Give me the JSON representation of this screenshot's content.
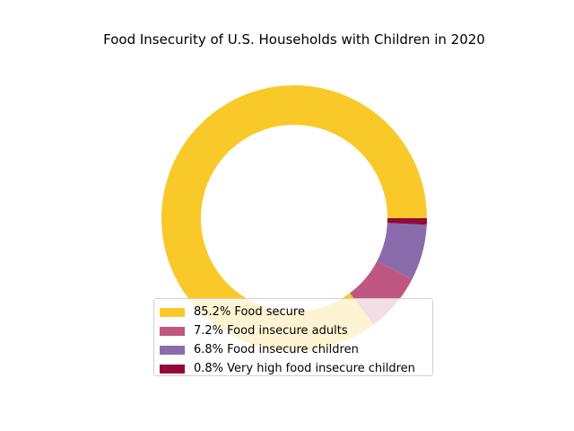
{
  "chart_data": {
    "type": "pie",
    "style": "donut",
    "title": "Food Insecurity of U.S. Households with Children in 2020",
    "categories": [
      "Food secure",
      "Food insecure adults",
      "Food insecure children",
      "Very high food insecure children"
    ],
    "values": [
      85.2,
      7.2,
      6.8,
      0.8
    ],
    "legend_labels": [
      "85.2% Food secure",
      "7.2% Food insecure adults",
      "6.8% Food insecure children",
      "0.8% Very high food insecure children"
    ],
    "colors": [
      "#f9c929",
      "#c05780",
      "#8a6bab",
      "#930a3a"
    ],
    "legend_position": "lower-center"
  }
}
